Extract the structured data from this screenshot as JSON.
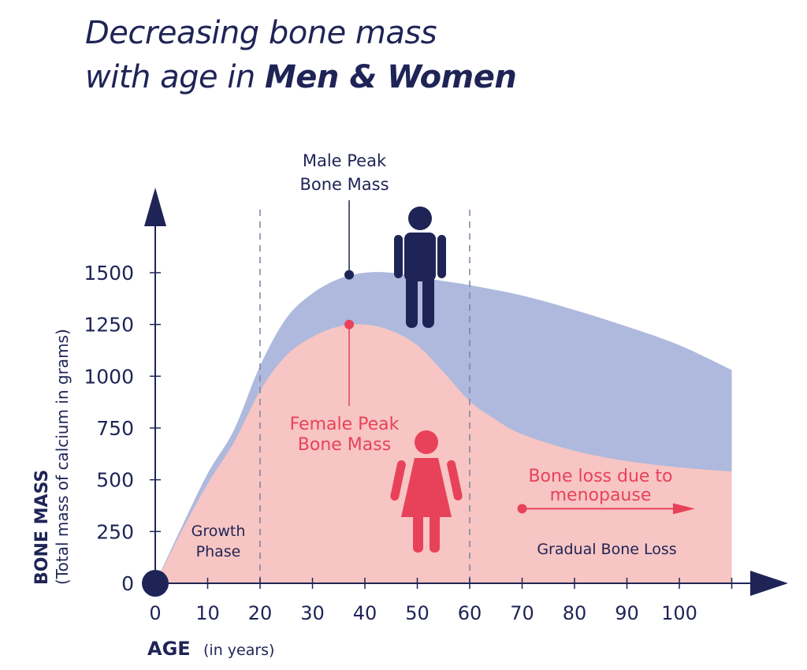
{
  "title": {
    "line1": "Decreasing bone mass",
    "line2_prefix": "with age in ",
    "line2_bold": "Men & Women"
  },
  "colors": {
    "navy": "#1f2456",
    "male_fill": "#aeb9dd",
    "female_fill": "#f7c5c3",
    "female_accent": "#e8425b",
    "dashed_line": "#7c82a3"
  },
  "chart_data": {
    "type": "area",
    "xlabel": "AGE",
    "xlabel_unit": "(in years)",
    "ylabel": "BONE MASS",
    "ylabel_unit": "(Total mass of calcium in grams)",
    "xlim": [
      0,
      110
    ],
    "ylim": [
      0,
      1500
    ],
    "x_ticks": [
      0,
      10,
      20,
      30,
      40,
      50,
      60,
      70,
      80,
      90,
      100
    ],
    "y_ticks": [
      0,
      250,
      500,
      750,
      1000,
      1250,
      1500
    ],
    "grid": false,
    "series": [
      {
        "name": "Men",
        "color": "#aeb9dd",
        "x": [
          0,
          5,
          10,
          15,
          20,
          25,
          30,
          35,
          40,
          45,
          50,
          55,
          60,
          70,
          80,
          90,
          100,
          110
        ],
        "y": [
          0,
          270,
          530,
          740,
          1050,
          1280,
          1400,
          1470,
          1500,
          1500,
          1480,
          1460,
          1440,
          1390,
          1320,
          1240,
          1150,
          1030
        ]
      },
      {
        "name": "Women",
        "color": "#f7c5c3",
        "x": [
          0,
          5,
          10,
          15,
          20,
          25,
          30,
          35,
          40,
          45,
          50,
          55,
          60,
          65,
          70,
          80,
          90,
          100,
          110
        ],
        "y": [
          0,
          250,
          480,
          680,
          930,
          1100,
          1190,
          1240,
          1250,
          1220,
          1150,
          1020,
          880,
          790,
          720,
          640,
          590,
          560,
          540
        ]
      }
    ],
    "reference_lines": [
      20,
      60
    ],
    "annotations": {
      "male_peak": {
        "text_line1": "Male Peak",
        "text_line2": "Bone Mass",
        "age": 37,
        "value": 1490
      },
      "female_peak": {
        "text_line1": "Female Peak",
        "text_line2": "Bone Mass",
        "age": 37,
        "value": 1250
      },
      "growth_phase": {
        "line1": "Growth",
        "line2": "Phase"
      },
      "menopause": {
        "line1": "Bone loss due to",
        "line2": "menopause",
        "arrow_from_age": 70,
        "arrow_to_age": 103,
        "value": 360
      },
      "gradual_loss": "Gradual Bone Loss"
    }
  }
}
